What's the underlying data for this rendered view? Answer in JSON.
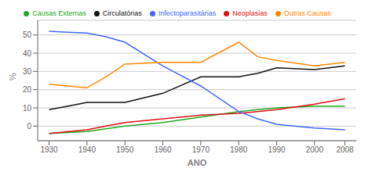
{
  "chart_data": {
    "type": "line",
    "xlabel": "ANO",
    "ylabel": "%",
    "x": [
      1930,
      1935,
      1940,
      1945,
      1950,
      1960,
      1970,
      1980,
      1985,
      1990,
      2000,
      2008
    ],
    "series": [
      {
        "name": "Causas Externas",
        "color": "#22aa22",
        "values": [
          -4,
          -3.5,
          -3,
          -1.5,
          0,
          2,
          5,
          8,
          9,
          10,
          11,
          11
        ]
      },
      {
        "name": "Neoplasias",
        "color": "#dd1111",
        "values": [
          -4,
          -3,
          -2,
          0,
          2,
          4,
          6,
          7,
          8,
          9,
          12,
          15
        ]
      },
      {
        "name": "Circulatórias",
        "color": "#111111",
        "values": [
          9,
          11,
          13,
          13,
          13,
          18,
          27,
          27,
          29,
          32,
          31,
          33
        ]
      },
      {
        "name": "Infectoparasitárias",
        "color": "#4466ff",
        "values": [
          52,
          51.5,
          51,
          49,
          46,
          33,
          22,
          8,
          4,
          1,
          -1,
          -2
        ]
      },
      {
        "name": "Outras Causas",
        "color": "#ff8800",
        "values": [
          23,
          22,
          21,
          27,
          34,
          35,
          35,
          46,
          38,
          36,
          33,
          35
        ]
      }
    ],
    "xlim": [
      1927,
      2011
    ],
    "ylim": [
      -8,
      58
    ],
    "xticks": [
      1930,
      1940,
      1950,
      1960,
      1970,
      1980,
      1990,
      2000,
      2008
    ],
    "yticks": [
      0,
      10,
      20,
      30,
      40,
      50
    ],
    "grid": "y",
    "legend": "top"
  }
}
